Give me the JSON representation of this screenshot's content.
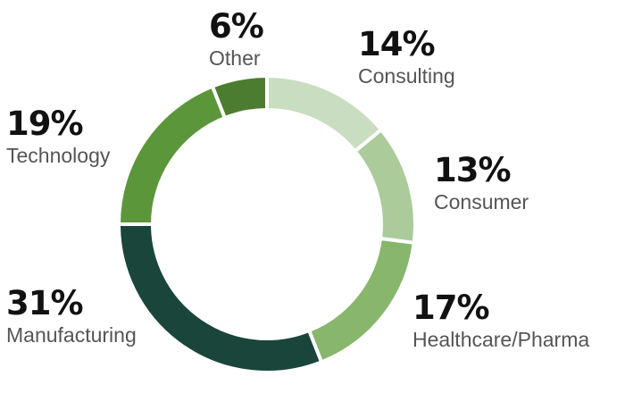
{
  "chart_data": {
    "type": "pie",
    "variant": "donut",
    "categories": [
      "Consulting",
      "Consumer",
      "Healthcare/Pharma",
      "Manufacturing",
      "Technology",
      "Other"
    ],
    "values": [
      14,
      13,
      17,
      31,
      19,
      6
    ],
    "labels": [
      "14%",
      "13%",
      "17%",
      "31%",
      "19%",
      "6%"
    ],
    "colors": [
      "#c9ddc1",
      "#abcb9a",
      "#87b66c",
      "#1a453a",
      "#5c963a",
      "#4c7c30"
    ],
    "start": "top",
    "direction": "clockwise",
    "legend": "none"
  }
}
